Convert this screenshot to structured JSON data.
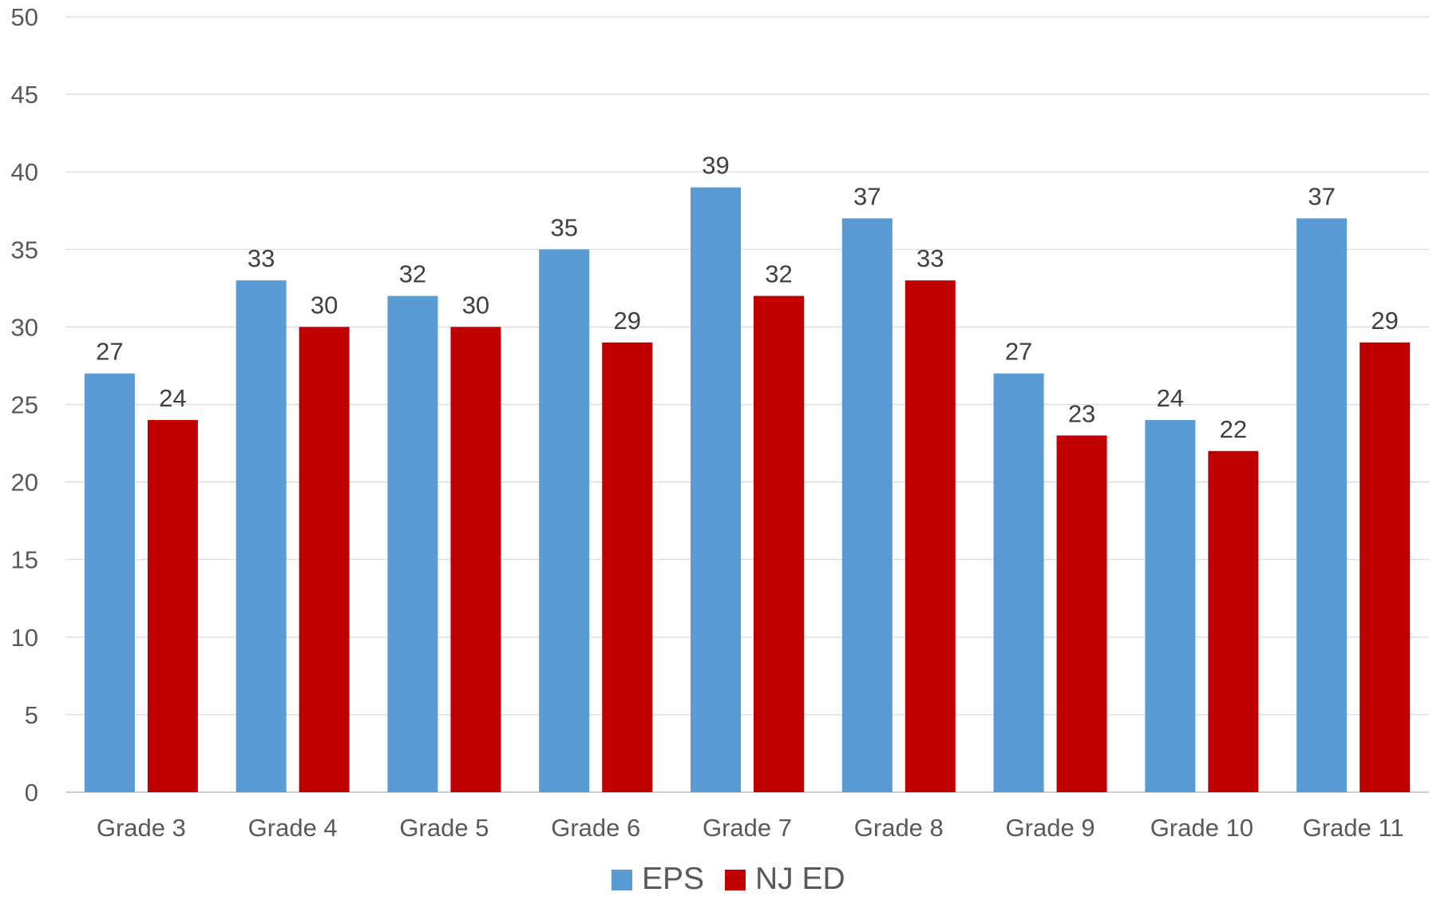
{
  "chart_data": {
    "type": "bar",
    "title": "",
    "xlabel": "",
    "ylabel": "",
    "ylim": [
      0,
      50
    ],
    "yticks": [
      0,
      5,
      10,
      15,
      20,
      25,
      30,
      35,
      40,
      45,
      50
    ],
    "grid": true,
    "legend_position": "bottom",
    "categories": [
      "Grade 3",
      "Grade 4",
      "Grade 5",
      "Grade 6",
      "Grade 7",
      "Grade 8",
      "Grade 9",
      "Grade 10",
      "Grade 11"
    ],
    "series": [
      {
        "name": "EPS",
        "color": "#5b9bd5",
        "values": [
          27,
          33,
          32,
          35,
          39,
          37,
          27,
          24,
          37
        ]
      },
      {
        "name": "NJ ED",
        "color": "#c00000",
        "values": [
          24,
          30,
          30,
          29,
          32,
          33,
          23,
          22,
          29
        ]
      }
    ]
  }
}
